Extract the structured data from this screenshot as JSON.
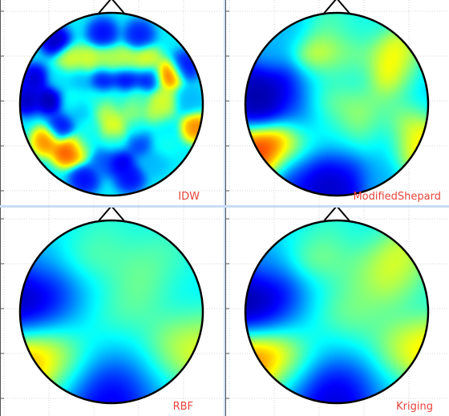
{
  "colors": {
    "label": "#e8433a",
    "outline": "#000000",
    "grid": "#c9c9c9",
    "axis": "#555555",
    "divider": "#c8ddf3"
  },
  "colormap": [
    "#00007f",
    "#0000ff",
    "#007fff",
    "#00ffff",
    "#7fff7f",
    "#ffff00",
    "#ff7f00",
    "#ff0000",
    "#7f0000"
  ],
  "chart_data": [
    {
      "type": "heatmap",
      "title": "IDW",
      "method": "idw",
      "description": "Scalp topography with nose at top",
      "value_range": [
        0,
        1
      ],
      "electrodes": [
        {
          "x": -0.62,
          "y": 0.7,
          "v": 0.02
        },
        {
          "x": -0.1,
          "y": 0.78,
          "v": 0.1
        },
        {
          "x": 0.3,
          "y": 0.76,
          "v": 0.12
        },
        {
          "x": -0.45,
          "y": 0.48,
          "v": 0.62
        },
        {
          "x": -0.25,
          "y": 0.48,
          "v": 0.62
        },
        {
          "x": -0.05,
          "y": 0.48,
          "v": 0.58
        },
        {
          "x": 0.15,
          "y": 0.48,
          "v": 0.6
        },
        {
          "x": 0.38,
          "y": 0.48,
          "v": 0.64
        },
        {
          "x": 0.8,
          "y": 0.42,
          "v": 0.1
        },
        {
          "x": -0.85,
          "y": 0.28,
          "v": 0.04
        },
        {
          "x": -0.55,
          "y": 0.28,
          "v": 0.35
        },
        {
          "x": -0.35,
          "y": 0.28,
          "v": 0.3
        },
        {
          "x": -0.1,
          "y": 0.28,
          "v": 0.1
        },
        {
          "x": 0.15,
          "y": 0.28,
          "v": 0.08
        },
        {
          "x": 0.4,
          "y": 0.28,
          "v": 0.1
        },
        {
          "x": 0.62,
          "y": 0.32,
          "v": 0.85
        },
        {
          "x": -0.94,
          "y": 0.05,
          "v": 0.02
        },
        {
          "x": -0.68,
          "y": 0.05,
          "v": 0.0
        },
        {
          "x": -0.42,
          "y": 0.05,
          "v": 0.4
        },
        {
          "x": -0.18,
          "y": 0.05,
          "v": 0.4
        },
        {
          "x": 0.05,
          "y": 0.05,
          "v": 0.4
        },
        {
          "x": 0.28,
          "y": 0.05,
          "v": 0.45
        },
        {
          "x": 0.55,
          "y": 0.05,
          "v": 0.62
        },
        {
          "x": 0.85,
          "y": 0.05,
          "v": 0.3
        },
        {
          "x": -0.35,
          "y": -0.08,
          "v": 0.3
        },
        {
          "x": -0.05,
          "y": -0.08,
          "v": 0.6
        },
        {
          "x": 0.22,
          "y": -0.08,
          "v": 0.55
        },
        {
          "x": 0.5,
          "y": -0.1,
          "v": 0.6
        },
        {
          "x": -0.55,
          "y": -0.25,
          "v": 0.1
        },
        {
          "x": -0.25,
          "y": -0.25,
          "v": 0.4
        },
        {
          "x": 0.02,
          "y": -0.25,
          "v": 0.65
        },
        {
          "x": 0.28,
          "y": -0.25,
          "v": 0.4
        },
        {
          "x": 0.55,
          "y": -0.25,
          "v": 0.35
        },
        {
          "x": 0.92,
          "y": -0.25,
          "v": 0.8
        },
        {
          "x": -0.72,
          "y": -0.4,
          "v": 0.8
        },
        {
          "x": -0.3,
          "y": -0.42,
          "v": 0.35
        },
        {
          "x": 0.02,
          "y": -0.42,
          "v": 0.4
        },
        {
          "x": 0.32,
          "y": -0.42,
          "v": 0.15
        },
        {
          "x": 0.55,
          "y": -0.42,
          "v": 0.4
        },
        {
          "x": -0.5,
          "y": -0.52,
          "v": 0.85
        },
        {
          "x": -0.4,
          "y": -0.48,
          "v": 0.8
        },
        {
          "x": -0.08,
          "y": -0.62,
          "v": 0.2
        },
        {
          "x": 0.08,
          "y": -0.62,
          "v": 0.05
        },
        {
          "x": 0.45,
          "y": -0.62,
          "v": 0.3
        },
        {
          "x": -0.3,
          "y": -0.82,
          "v": 0.1
        },
        {
          "x": 0.2,
          "y": -0.8,
          "v": 0.1
        }
      ]
    },
    {
      "type": "heatmap",
      "title": "ModifiedShepard",
      "method": "shepard",
      "description": "Scalp topography with nose at top",
      "value_range": [
        0,
        1
      ],
      "electrodes": [
        {
          "x": -0.45,
          "y": 0.78,
          "v": 0.3
        },
        {
          "x": -0.1,
          "y": 0.8,
          "v": 0.45
        },
        {
          "x": 0.25,
          "y": 0.78,
          "v": 0.4
        },
        {
          "x": -0.7,
          "y": 0.55,
          "v": 0.3
        },
        {
          "x": -0.22,
          "y": 0.55,
          "v": 0.7
        },
        {
          "x": 0.08,
          "y": 0.48,
          "v": 0.55
        },
        {
          "x": 0.3,
          "y": 0.45,
          "v": 0.5
        },
        {
          "x": 0.58,
          "y": 0.48,
          "v": 0.65
        },
        {
          "x": 0.62,
          "y": 0.3,
          "v": 0.82
        },
        {
          "x": 0.78,
          "y": 0.28,
          "v": 0.3
        },
        {
          "x": -0.85,
          "y": 0.2,
          "v": 0.02
        },
        {
          "x": -0.55,
          "y": 0.2,
          "v": 0.05
        },
        {
          "x": -0.3,
          "y": 0.25,
          "v": 0.3
        },
        {
          "x": -0.05,
          "y": 0.3,
          "v": 0.4
        },
        {
          "x": 0.2,
          "y": 0.28,
          "v": 0.3
        },
        {
          "x": -0.78,
          "y": -0.05,
          "v": 0.02
        },
        {
          "x": -0.45,
          "y": -0.02,
          "v": 0.15
        },
        {
          "x": -0.15,
          "y": 0.05,
          "v": 0.5
        },
        {
          "x": 0.12,
          "y": 0.05,
          "v": 0.55
        },
        {
          "x": 0.4,
          "y": 0.05,
          "v": 0.5
        },
        {
          "x": 0.7,
          "y": 0.02,
          "v": 0.4
        },
        {
          "x": 0.92,
          "y": 0.05,
          "v": 0.3
        },
        {
          "x": -0.35,
          "y": -0.2,
          "v": 0.3
        },
        {
          "x": -0.05,
          "y": -0.22,
          "v": 0.4
        },
        {
          "x": 0.25,
          "y": -0.22,
          "v": 0.6
        },
        {
          "x": 0.55,
          "y": -0.22,
          "v": 0.4
        },
        {
          "x": 0.78,
          "y": -0.18,
          "v": 0.7
        },
        {
          "x": -0.78,
          "y": -0.48,
          "v": 0.88
        },
        {
          "x": -0.55,
          "y": -0.45,
          "v": 0.82
        },
        {
          "x": -0.3,
          "y": -0.45,
          "v": 0.4
        },
        {
          "x": 0.02,
          "y": -0.45,
          "v": 0.35
        },
        {
          "x": 0.3,
          "y": -0.4,
          "v": 0.4
        },
        {
          "x": 0.55,
          "y": -0.42,
          "v": 0.3
        },
        {
          "x": 0.82,
          "y": -0.45,
          "v": 0.7
        },
        {
          "x": -0.45,
          "y": -0.68,
          "v": 0.1
        },
        {
          "x": -0.15,
          "y": -0.7,
          "v": 0.05
        },
        {
          "x": 0.12,
          "y": -0.7,
          "v": 0.1
        },
        {
          "x": 0.45,
          "y": -0.72,
          "v": 0.3
        },
        {
          "x": -0.05,
          "y": -0.9,
          "v": 0.05
        }
      ]
    },
    {
      "type": "heatmap",
      "title": "RBF",
      "method": "rbf",
      "description": "Scalp topography with nose at top",
      "value_range": [
        0,
        1
      ],
      "electrodes": [
        {
          "x": -0.4,
          "y": 0.78,
          "v": 0.35
        },
        {
          "x": -0.1,
          "y": 0.78,
          "v": 0.42
        },
        {
          "x": 0.22,
          "y": 0.75,
          "v": 0.38
        },
        {
          "x": -0.7,
          "y": 0.5,
          "v": 0.3
        },
        {
          "x": -0.2,
          "y": 0.55,
          "v": 0.62
        },
        {
          "x": 0.08,
          "y": 0.42,
          "v": 0.45
        },
        {
          "x": 0.3,
          "y": 0.42,
          "v": 0.55
        },
        {
          "x": 0.55,
          "y": 0.45,
          "v": 0.45
        },
        {
          "x": 0.7,
          "y": 0.25,
          "v": 0.35
        },
        {
          "x": -0.88,
          "y": 0.15,
          "v": 0.0
        },
        {
          "x": -0.55,
          "y": 0.15,
          "v": 0.05
        },
        {
          "x": -0.28,
          "y": 0.28,
          "v": 0.25
        },
        {
          "x": -0.05,
          "y": 0.25,
          "v": 0.3
        },
        {
          "x": 0.28,
          "y": 0.25,
          "v": 0.55
        },
        {
          "x": -0.72,
          "y": -0.08,
          "v": 0.1
        },
        {
          "x": -0.4,
          "y": -0.05,
          "v": 0.3
        },
        {
          "x": -0.12,
          "y": 0.02,
          "v": 0.5
        },
        {
          "x": 0.15,
          "y": 0.05,
          "v": 0.55
        },
        {
          "x": 0.45,
          "y": 0.05,
          "v": 0.4
        },
        {
          "x": 0.8,
          "y": 0.02,
          "v": 0.35
        },
        {
          "x": -0.35,
          "y": -0.22,
          "v": 0.35
        },
        {
          "x": -0.02,
          "y": -0.25,
          "v": 0.4
        },
        {
          "x": 0.25,
          "y": -0.2,
          "v": 0.4
        },
        {
          "x": 0.55,
          "y": -0.28,
          "v": 0.5
        },
        {
          "x": 0.85,
          "y": -0.25,
          "v": 0.65
        },
        {
          "x": -0.78,
          "y": -0.48,
          "v": 0.8
        },
        {
          "x": -0.55,
          "y": -0.45,
          "v": 0.85
        },
        {
          "x": -0.3,
          "y": -0.45,
          "v": 0.4
        },
        {
          "x": 0.02,
          "y": -0.45,
          "v": 0.3
        },
        {
          "x": 0.3,
          "y": -0.42,
          "v": 0.35
        },
        {
          "x": 0.62,
          "y": -0.45,
          "v": 0.7
        },
        {
          "x": -0.45,
          "y": -0.68,
          "v": 0.25
        },
        {
          "x": -0.08,
          "y": -0.7,
          "v": 0.05
        },
        {
          "x": 0.22,
          "y": -0.68,
          "v": 0.1
        },
        {
          "x": 0.5,
          "y": -0.7,
          "v": 0.3
        },
        {
          "x": -0.05,
          "y": -0.9,
          "v": 0.1
        }
      ]
    },
    {
      "type": "heatmap",
      "title": "Kriging",
      "method": "kriging",
      "description": "Scalp topography with nose at top",
      "value_range": [
        0,
        1
      ],
      "electrodes": [
        {
          "x": -0.4,
          "y": 0.78,
          "v": 0.35
        },
        {
          "x": -0.1,
          "y": 0.78,
          "v": 0.42
        },
        {
          "x": 0.22,
          "y": 0.75,
          "v": 0.38
        },
        {
          "x": -0.7,
          "y": 0.5,
          "v": 0.28
        },
        {
          "x": -0.2,
          "y": 0.55,
          "v": 0.68
        },
        {
          "x": 0.08,
          "y": 0.42,
          "v": 0.45
        },
        {
          "x": 0.3,
          "y": 0.42,
          "v": 0.55
        },
        {
          "x": 0.55,
          "y": 0.45,
          "v": 0.62
        },
        {
          "x": 0.62,
          "y": 0.3,
          "v": 0.75
        },
        {
          "x": 0.78,
          "y": 0.25,
          "v": 0.35
        },
        {
          "x": -0.88,
          "y": 0.15,
          "v": 0.0
        },
        {
          "x": -0.55,
          "y": 0.15,
          "v": 0.04
        },
        {
          "x": -0.28,
          "y": 0.28,
          "v": 0.25
        },
        {
          "x": -0.05,
          "y": 0.25,
          "v": 0.35
        },
        {
          "x": 0.28,
          "y": 0.25,
          "v": 0.5
        },
        {
          "x": -0.72,
          "y": -0.08,
          "v": 0.08
        },
        {
          "x": -0.4,
          "y": -0.05,
          "v": 0.3
        },
        {
          "x": -0.12,
          "y": 0.02,
          "v": 0.52
        },
        {
          "x": 0.15,
          "y": 0.05,
          "v": 0.58
        },
        {
          "x": 0.45,
          "y": 0.05,
          "v": 0.42
        },
        {
          "x": 0.8,
          "y": 0.02,
          "v": 0.35
        },
        {
          "x": -0.35,
          "y": -0.22,
          "v": 0.35
        },
        {
          "x": -0.02,
          "y": -0.25,
          "v": 0.4
        },
        {
          "x": 0.25,
          "y": -0.2,
          "v": 0.5
        },
        {
          "x": 0.55,
          "y": -0.28,
          "v": 0.45
        },
        {
          "x": 0.85,
          "y": -0.25,
          "v": 0.72
        },
        {
          "x": -0.78,
          "y": -0.48,
          "v": 0.82
        },
        {
          "x": -0.55,
          "y": -0.45,
          "v": 0.85
        },
        {
          "x": -0.3,
          "y": -0.45,
          "v": 0.4
        },
        {
          "x": 0.02,
          "y": -0.45,
          "v": 0.3
        },
        {
          "x": 0.3,
          "y": -0.42,
          "v": 0.35
        },
        {
          "x": 0.62,
          "y": -0.45,
          "v": 0.72
        },
        {
          "x": -0.45,
          "y": -0.68,
          "v": 0.22
        },
        {
          "x": -0.08,
          "y": -0.7,
          "v": 0.05
        },
        {
          "x": 0.22,
          "y": -0.68,
          "v": 0.1
        },
        {
          "x": 0.5,
          "y": -0.7,
          "v": 0.3
        },
        {
          "x": -0.05,
          "y": -0.9,
          "v": 0.08
        }
      ]
    }
  ]
}
